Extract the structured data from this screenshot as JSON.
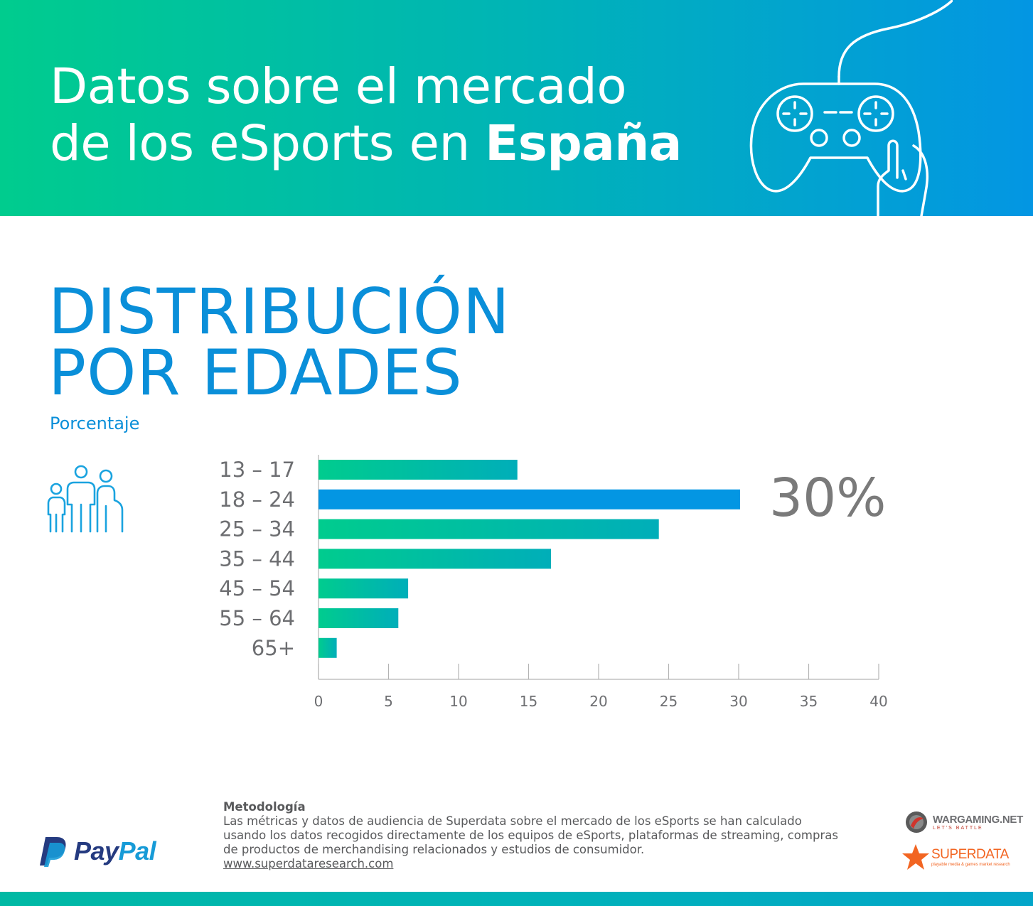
{
  "header": {
    "title_line1": "Datos sobre el mercado",
    "title_line2_pre": "de los eSports en ",
    "title_line2_bold": "España",
    "icon": "gamepad-icon"
  },
  "section": {
    "title_line1": "DISTRIBUCIÓN",
    "title_line2": "POR EDADES",
    "subtitle": "Porcentaje",
    "icon": "family-icon"
  },
  "highlight": "30%",
  "chart_data": {
    "type": "bar",
    "orientation": "horizontal",
    "categories": [
      "13 – 17",
      "18 – 24",
      "25 – 34",
      "35 – 44",
      "45 – 54",
      "55 – 64",
      "65+"
    ],
    "values": [
      14.2,
      30.1,
      24.3,
      16.6,
      6.4,
      5.7,
      1.3
    ],
    "highlight_category": "18 – 24",
    "xlim": [
      0,
      40
    ],
    "xticks": [
      0,
      5,
      10,
      15,
      20,
      25,
      30,
      35,
      40
    ],
    "title": "",
    "xlabel": "",
    "ylabel": "",
    "grid": false,
    "colors": {
      "bar_start": "#00cc8e",
      "bar_end": "#00aeb9",
      "highlight": "#0396e3",
      "axis": "#b3b3b3",
      "label": "#6d6e71"
    }
  },
  "methodology": {
    "title": "Metodología",
    "text": "Las métricas y datos de audiencia de Superdata sobre el mercado de los eSports se han calculado usando los datos recogidos directamente de los equipos de eSports, plataformas de streaming, compras de productos de merchandising relacionados y estudios de consumidor.",
    "link": "www.superdataresearch.com"
  },
  "logos": {
    "paypal_a": "Pay",
    "paypal_b": "Pal",
    "wargaming": "WARGAMING.NET",
    "wargaming_tag": "LET'S BATTLE",
    "superdata": "SUPERDATA",
    "superdata_tag": "playable media & games market research"
  }
}
